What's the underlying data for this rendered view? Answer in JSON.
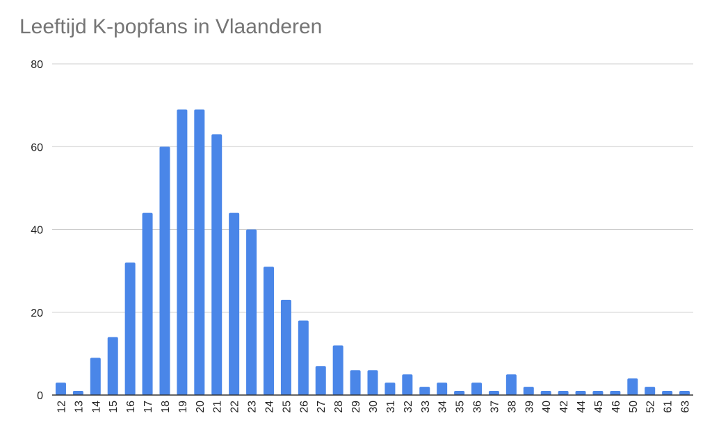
{
  "chart_data": {
    "type": "bar",
    "title": "Leeftijd K-popfans in Vlaanderen",
    "xlabel": "",
    "ylabel": "",
    "categories": [
      "12",
      "13",
      "14",
      "15",
      "16",
      "17",
      "18",
      "19",
      "20",
      "21",
      "22",
      "23",
      "24",
      "25",
      "26",
      "27",
      "28",
      "29",
      "30",
      "31",
      "32",
      "33",
      "34",
      "35",
      "36",
      "37",
      "38",
      "39",
      "40",
      "42",
      "44",
      "45",
      "46",
      "50",
      "52",
      "61",
      "63"
    ],
    "values": [
      3,
      1,
      9,
      14,
      32,
      44,
      60,
      69,
      69,
      63,
      44,
      40,
      31,
      23,
      18,
      7,
      12,
      6,
      6,
      3,
      5,
      2,
      3,
      1,
      3,
      1,
      5,
      2,
      1,
      1,
      1,
      1,
      1,
      4,
      2,
      1,
      1
    ],
    "ylim": [
      0,
      80
    ],
    "yticks": [
      0,
      20,
      40,
      60,
      80
    ],
    "grid": true,
    "legend": "none",
    "bar_color": "#4a86e8",
    "grid_color": "#cccccc",
    "title_color": "#757575"
  }
}
